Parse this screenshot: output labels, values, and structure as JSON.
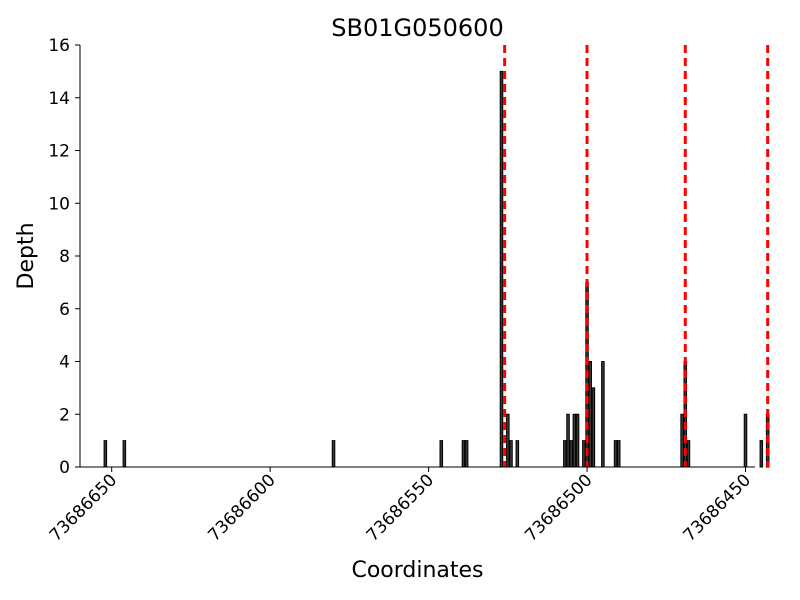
{
  "chart_data": {
    "type": "bar",
    "title": "SB01G050600",
    "xlabel": "Coordinates",
    "ylabel": "Depth",
    "xlim": [
      73686660,
      73686447
    ],
    "ylim": [
      0,
      16
    ],
    "x_inverted": true,
    "x_ticks": [
      73686650,
      73686600,
      73686550,
      73686500,
      73686450
    ],
    "y_ticks": [
      0,
      2,
      4,
      6,
      8,
      10,
      12,
      14,
      16
    ],
    "grid": false,
    "bar_color": "#3a3a3a",
    "bar_edge_color": "#000000",
    "line_color": "#ff0000",
    "dashed_lines_x": [
      73686526,
      73686500,
      73686469,
      73686443
    ],
    "bars": [
      {
        "x": 73686652,
        "y": 1
      },
      {
        "x": 73686646,
        "y": 1
      },
      {
        "x": 73686580,
        "y": 1
      },
      {
        "x": 73686546,
        "y": 1
      },
      {
        "x": 73686539,
        "y": 1
      },
      {
        "x": 73686538,
        "y": 1
      },
      {
        "x": 73686527,
        "y": 15
      },
      {
        "x": 73686525,
        "y": 2
      },
      {
        "x": 73686524,
        "y": 1
      },
      {
        "x": 73686522,
        "y": 1
      },
      {
        "x": 73686507,
        "y": 1
      },
      {
        "x": 73686506,
        "y": 2
      },
      {
        "x": 73686505,
        "y": 1
      },
      {
        "x": 73686504,
        "y": 2
      },
      {
        "x": 73686503,
        "y": 2
      },
      {
        "x": 73686501,
        "y": 1
      },
      {
        "x": 73686500,
        "y": 7
      },
      {
        "x": 73686499,
        "y": 4
      },
      {
        "x": 73686498,
        "y": 3
      },
      {
        "x": 73686495,
        "y": 4
      },
      {
        "x": 73686491,
        "y": 1
      },
      {
        "x": 73686490,
        "y": 1
      },
      {
        "x": 73686470,
        "y": 2
      },
      {
        "x": 73686469,
        "y": 4
      },
      {
        "x": 73686468,
        "y": 1
      },
      {
        "x": 73686450,
        "y": 2
      },
      {
        "x": 73686445,
        "y": 1
      },
      {
        "x": 73686443,
        "y": 2
      }
    ]
  }
}
